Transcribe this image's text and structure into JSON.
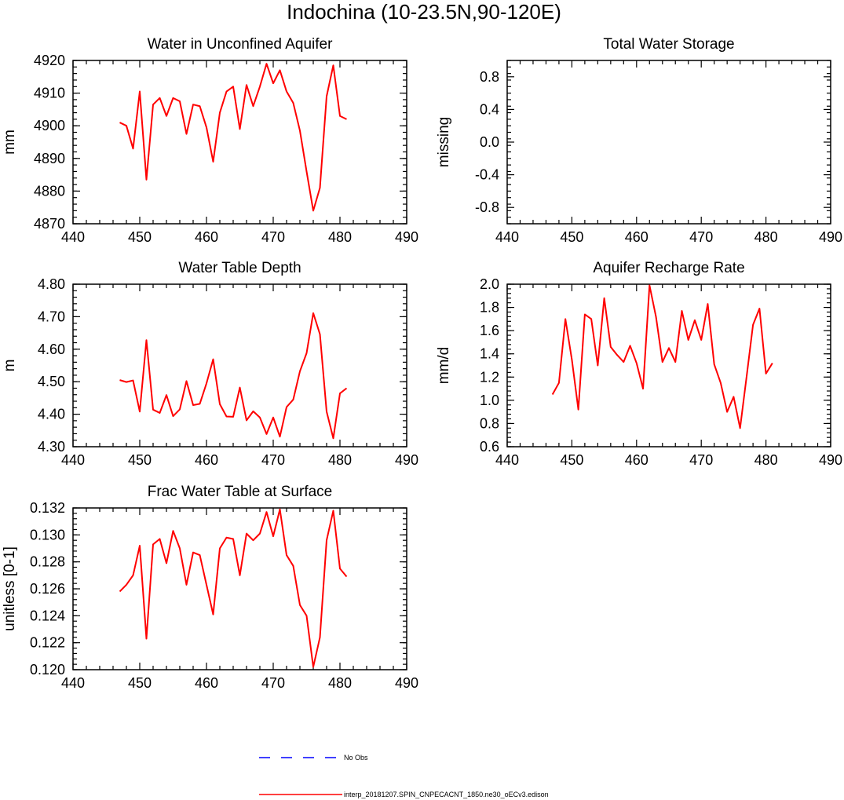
{
  "title": "Indochina (10-23.5N,90-120E)",
  "colors": {
    "model": "#ff0000",
    "obs": "#0000ff",
    "axis": "#000000"
  },
  "legend": [
    {
      "label": "No Obs",
      "style": "dashed",
      "color": "#0000ff"
    },
    {
      "label": "interp_20181207.SPIN_CNPECACNT_1850.ne30_oECv3.edison",
      "style": "solid",
      "color": "#ff0000"
    }
  ],
  "chart_data": [
    {
      "type": "line",
      "title": "Water in Unconfined Aquifer",
      "xlabel": "",
      "ylabel": "mm",
      "xlim": [
        440,
        490
      ],
      "ylim": [
        4870,
        4920
      ],
      "xticks": [
        440,
        450,
        460,
        470,
        480,
        490
      ],
      "xtick_labels": [
        "440",
        "450",
        "460",
        "470",
        "480",
        "490"
      ],
      "yticks": [
        4870,
        4880,
        4890,
        4900,
        4910,
        4920
      ],
      "ytick_labels": [
        "4870",
        "4880",
        "4890",
        "4900",
        "4910",
        "4920"
      ],
      "series": [
        {
          "name": "interp_20181207.SPIN_CNPECACNT_1850.ne30_oECv3.edison",
          "x": [
            447,
            448,
            449,
            450,
            451,
            452,
            453,
            454,
            455,
            456,
            457,
            458,
            459,
            460,
            461,
            462,
            463,
            464,
            465,
            466,
            467,
            468,
            469,
            470,
            471,
            472,
            473,
            474,
            475,
            476,
            477,
            478,
            479,
            480,
            481
          ],
          "values": [
            4901,
            4900,
            4893,
            4910.5,
            4883.5,
            4906.5,
            4908.5,
            4903,
            4908.5,
            4907.5,
            4897.5,
            4906.5,
            4906,
            4899.5,
            4889,
            4904,
            4910.5,
            4912,
            4899,
            4912.5,
            4906,
            4912,
            4919,
            4913,
            4917,
            4910.5,
            4907,
            4898.5,
            4886,
            4874,
            4881,
            4909,
            4918.5,
            4903,
            4902
          ]
        }
      ]
    },
    {
      "type": "line",
      "title": "Total Water Storage",
      "xlabel": "",
      "ylabel": "missing",
      "xlim": [
        440,
        490
      ],
      "ylim": [
        -1.0,
        1.0
      ],
      "xticks": [
        440,
        450,
        460,
        470,
        480,
        490
      ],
      "xtick_labels": [
        "440",
        "450",
        "460",
        "470",
        "480",
        "490"
      ],
      "yticks": [
        -0.8,
        -0.4,
        0.0,
        0.4,
        0.8
      ],
      "ytick_labels": [
        "-0.8",
        "-0.4",
        "0.0",
        "0.4",
        "0.8"
      ],
      "series": []
    },
    {
      "type": "line",
      "title": "Water Table Depth",
      "xlabel": "",
      "ylabel": "m",
      "xlim": [
        440,
        490
      ],
      "ylim": [
        4.3,
        4.8
      ],
      "xticks": [
        440,
        450,
        460,
        470,
        480,
        490
      ],
      "xtick_labels": [
        "440",
        "450",
        "460",
        "470",
        "480",
        "490"
      ],
      "yticks": [
        4.3,
        4.4,
        4.5,
        4.6,
        4.7,
        4.8
      ],
      "ytick_labels": [
        "4.30",
        "4.40",
        "4.50",
        "4.60",
        "4.70",
        "4.80"
      ],
      "series": [
        {
          "name": "interp_20181207.SPIN_CNPECACNT_1850.ne30_oECv3.edison",
          "x": [
            447,
            448,
            449,
            450,
            451,
            452,
            453,
            454,
            455,
            456,
            457,
            458,
            459,
            460,
            461,
            462,
            463,
            464,
            465,
            466,
            467,
            468,
            469,
            470,
            471,
            472,
            473,
            474,
            475,
            476,
            477,
            478,
            479,
            480,
            481
          ],
          "values": [
            4.505,
            4.499,
            4.504,
            4.408,
            4.628,
            4.414,
            4.404,
            4.459,
            4.394,
            4.415,
            4.502,
            4.428,
            4.432,
            4.495,
            4.569,
            4.431,
            4.393,
            4.392,
            4.482,
            4.381,
            4.409,
            4.39,
            4.339,
            4.39,
            4.331,
            4.422,
            4.445,
            4.532,
            4.588,
            4.711,
            4.646,
            4.408,
            4.326,
            4.464,
            4.48
          ]
        }
      ]
    },
    {
      "type": "line",
      "title": "Aquifer Recharge Rate",
      "xlabel": "",
      "ylabel": "mm/d",
      "xlim": [
        440,
        490
      ],
      "ylim": [
        0.6,
        2.0
      ],
      "xticks": [
        440,
        450,
        460,
        470,
        480,
        490
      ],
      "xtick_labels": [
        "440",
        "450",
        "460",
        "470",
        "480",
        "490"
      ],
      "yticks": [
        0.6,
        0.8,
        1.0,
        1.2,
        1.4,
        1.6,
        1.8,
        2.0
      ],
      "ytick_labels": [
        "0.6",
        "0.8",
        "1.0",
        "1.2",
        "1.4",
        "1.6",
        "1.8",
        "2.0"
      ],
      "series": [
        {
          "name": "interp_20181207.SPIN_CNPECACNT_1850.ne30_oECv3.edison",
          "x": [
            447,
            448,
            449,
            450,
            451,
            452,
            453,
            454,
            455,
            456,
            457,
            458,
            459,
            460,
            461,
            462,
            463,
            464,
            465,
            466,
            467,
            468,
            469,
            470,
            471,
            472,
            473,
            474,
            475,
            476,
            477,
            478,
            479,
            480,
            481
          ],
          "values": [
            1.05,
            1.15,
            1.7,
            1.35,
            0.92,
            1.74,
            1.7,
            1.3,
            1.88,
            1.46,
            1.39,
            1.33,
            1.47,
            1.32,
            1.1,
            1.99,
            1.72,
            1.33,
            1.45,
            1.33,
            1.77,
            1.52,
            1.69,
            1.52,
            1.83,
            1.31,
            1.15,
            0.9,
            1.03,
            0.76,
            1.2,
            1.65,
            1.79,
            1.23,
            1.32
          ]
        }
      ]
    },
    {
      "type": "line",
      "title": "Frac Water Table at Surface",
      "xlabel": "",
      "ylabel": "unitless [0-1]",
      "xlim": [
        440,
        490
      ],
      "ylim": [
        0.12,
        0.132
      ],
      "xticks": [
        440,
        450,
        460,
        470,
        480,
        490
      ],
      "xtick_labels": [
        "440",
        "450",
        "460",
        "470",
        "480",
        "490"
      ],
      "yticks": [
        0.12,
        0.122,
        0.124,
        0.126,
        0.128,
        0.13,
        0.132
      ],
      "ytick_labels": [
        "0.120",
        "0.122",
        "0.124",
        "0.126",
        "0.128",
        "0.130",
        "0.132"
      ],
      "series": [
        {
          "name": "interp_20181207.SPIN_CNPECACNT_1850.ne30_oECv3.edison",
          "x": [
            447,
            448,
            449,
            450,
            451,
            452,
            453,
            454,
            455,
            456,
            457,
            458,
            459,
            460,
            461,
            462,
            463,
            464,
            465,
            466,
            467,
            468,
            469,
            470,
            471,
            472,
            473,
            474,
            475,
            476,
            477,
            478,
            479,
            480,
            481
          ],
          "values": [
            0.1258,
            0.1263,
            0.127,
            0.1292,
            0.1223,
            0.1293,
            0.1297,
            0.1279,
            0.1303,
            0.129,
            0.1263,
            0.1287,
            0.1285,
            0.1263,
            0.1241,
            0.129,
            0.1298,
            0.1297,
            0.127,
            0.1301,
            0.1296,
            0.1301,
            0.1317,
            0.1299,
            0.1319,
            0.1285,
            0.1277,
            0.1248,
            0.124,
            0.1202,
            0.1224,
            0.1296,
            0.1318,
            0.1275,
            0.1269
          ]
        }
      ]
    }
  ]
}
